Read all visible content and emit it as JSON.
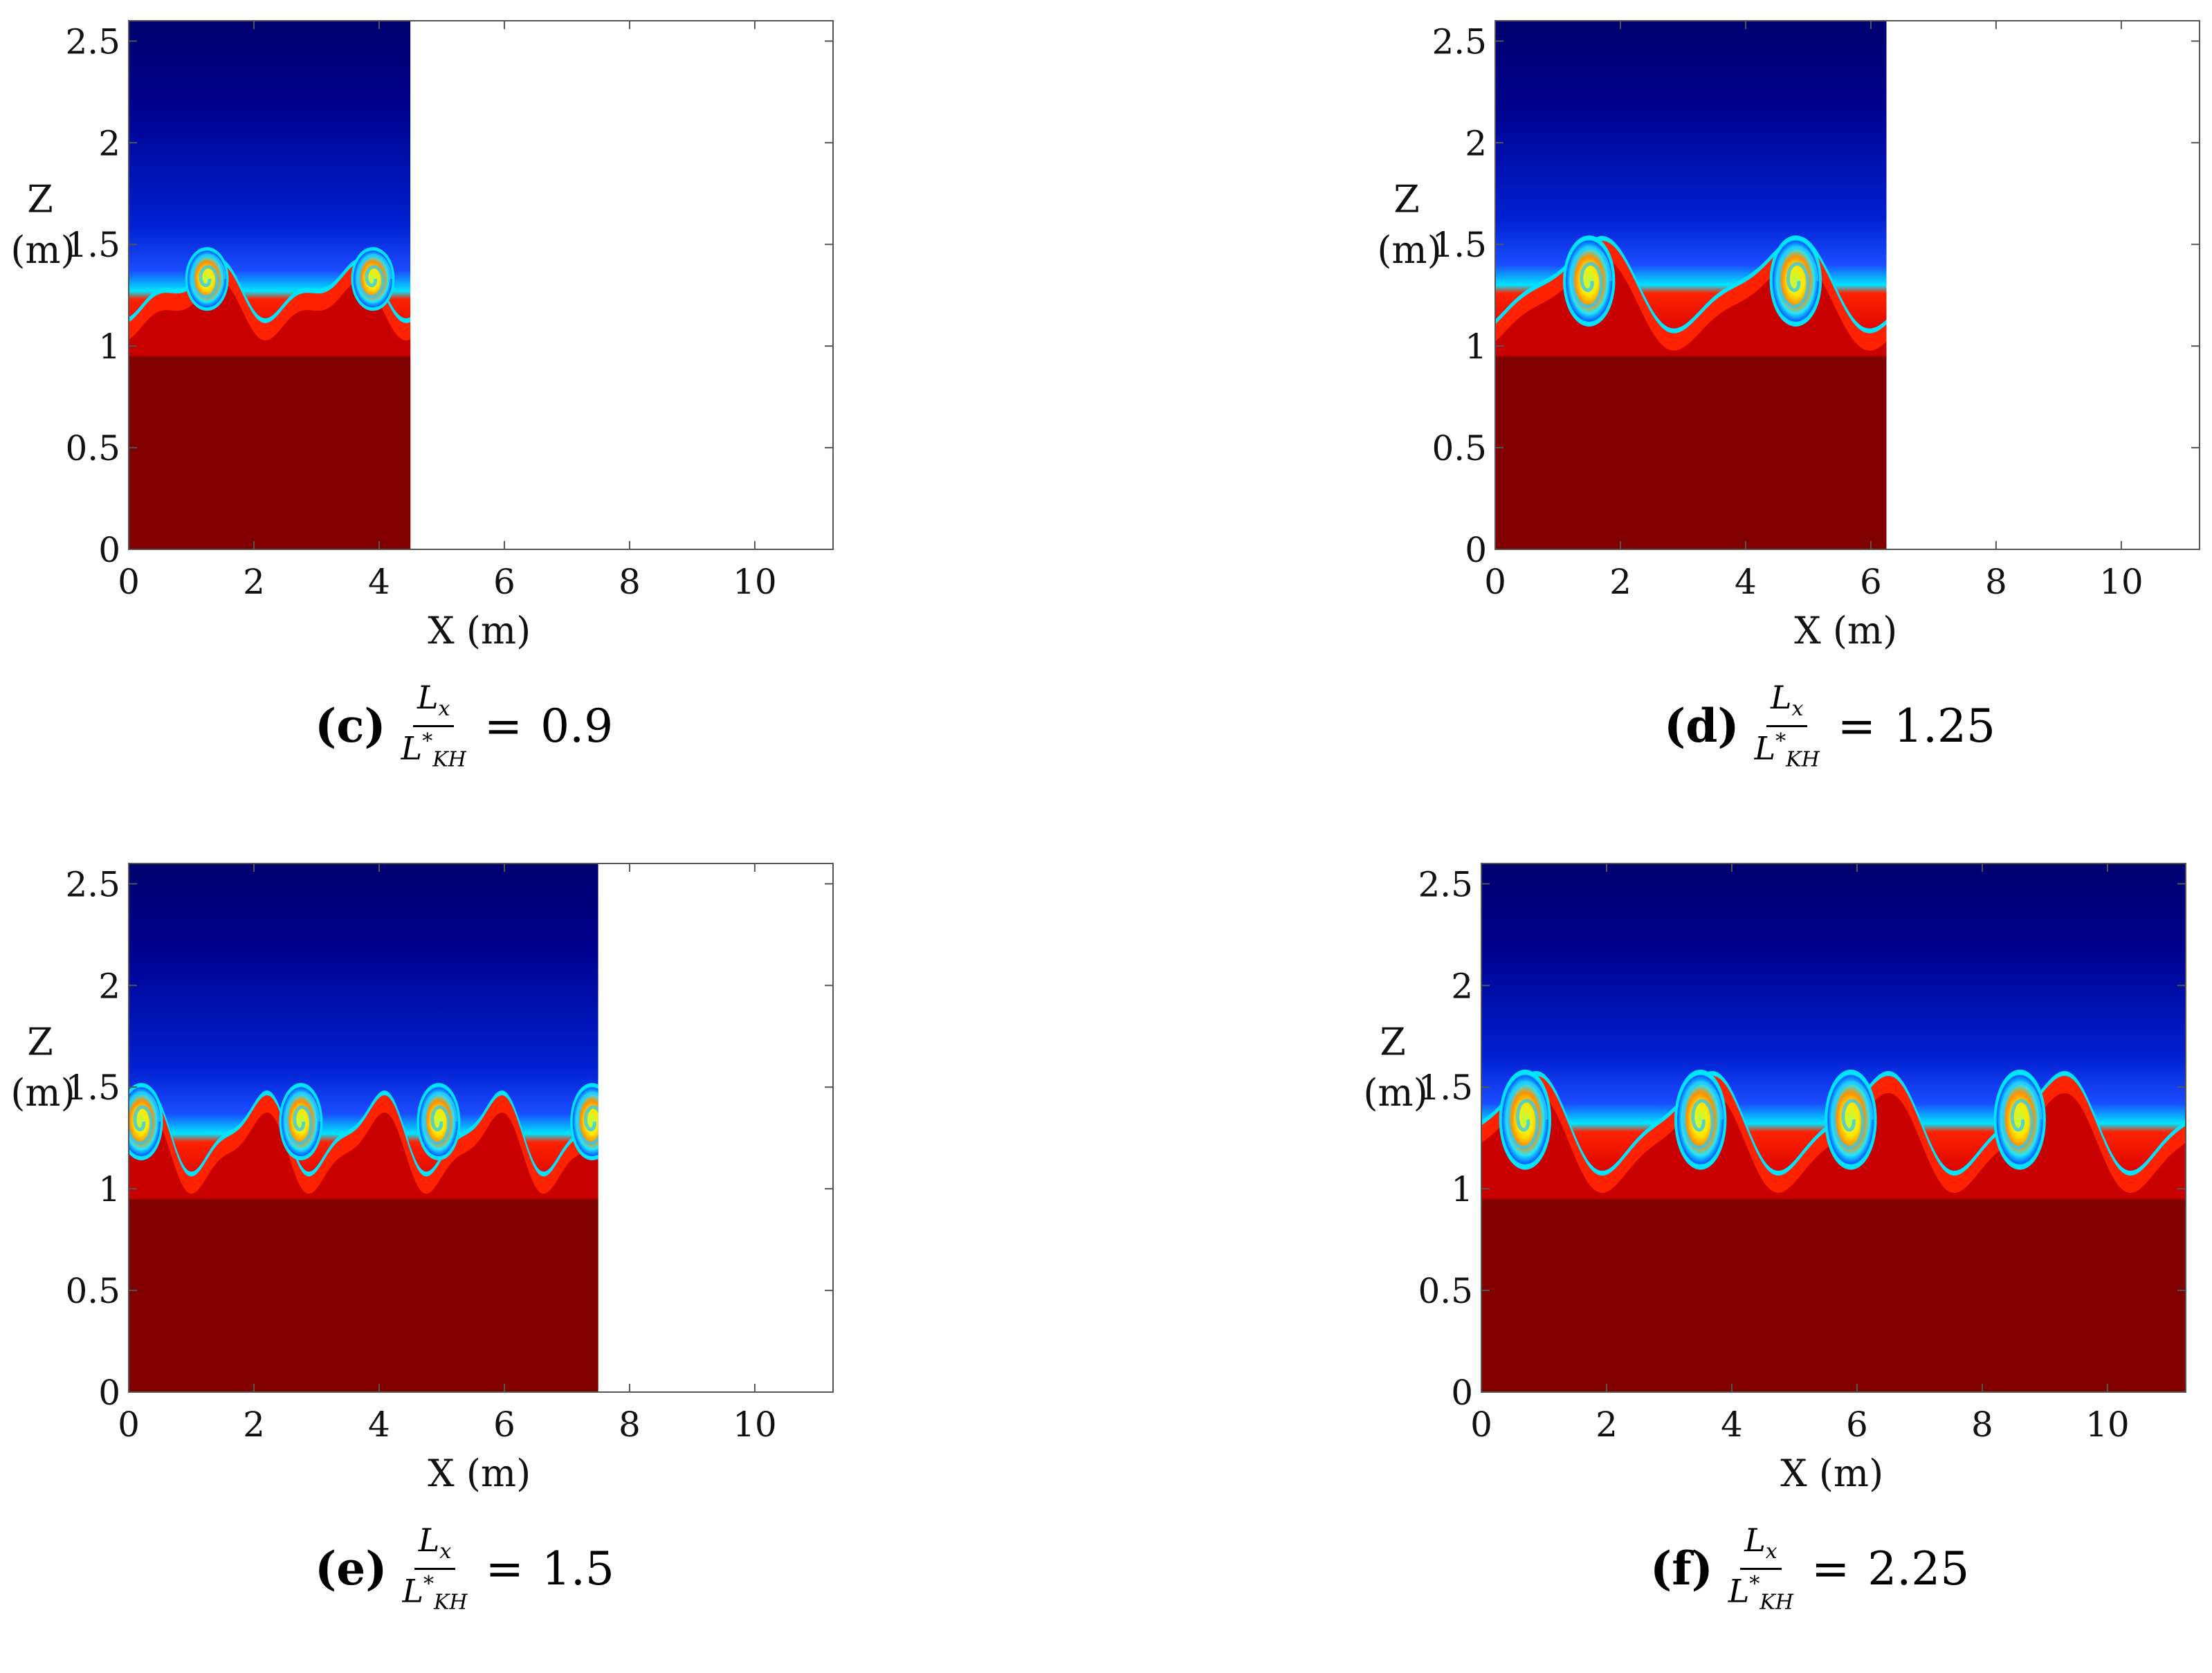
{
  "figure_panels": [
    {
      "id": "c",
      "label": "(c)",
      "caption_prefix": "L",
      "caption_sub_x": "x",
      "caption_den": "L",
      "caption_den_sup": "*",
      "caption_den_sub": "KH",
      "caption_eq": "=",
      "caption_value": "0.9"
    },
    {
      "id": "d",
      "label": "(d)",
      "caption_prefix": "L",
      "caption_sub_x": "x",
      "caption_den": "L",
      "caption_den_sup": "*",
      "caption_den_sub": "KH",
      "caption_eq": "=",
      "caption_value": "1.25"
    },
    {
      "id": "e",
      "label": "(e)",
      "caption_prefix": "L",
      "caption_sub_x": "x",
      "caption_den": "L",
      "caption_den_sup": "*",
      "caption_den_sub": "KH",
      "caption_eq": "=",
      "caption_value": "1.5"
    },
    {
      "id": "f",
      "label": "(f)",
      "caption_prefix": "L",
      "caption_sub_x": "x",
      "caption_den": "L",
      "caption_den_sup": "*",
      "caption_den_sub": "KH",
      "caption_eq": "=",
      "caption_value": "2.25"
    }
  ],
  "colors": {
    "upper_layer": "#00008b",
    "lower_layer": "#800000",
    "interface_warm": "#ff2200",
    "interface_mid": "#ffee00",
    "interface_cool": "#00e5ff",
    "interface_blue": "#1a4dff"
  },
  "chart_data": [
    {
      "panel": "c",
      "type": "heatmap",
      "description_of_field": "density contour of Kelvin-Helmholtz billows",
      "xlabel": "X (m)",
      "ylabel_line1": "Z",
      "ylabel_line2": "(m)",
      "xlim": [
        0,
        11.25
      ],
      "ylim": [
        0,
        2.6
      ],
      "xticks": [
        0,
        2,
        4,
        6,
        8,
        10
      ],
      "xtick_labels": [
        "0",
        "2",
        "4",
        "6",
        "8",
        "10"
      ],
      "yticks": [
        0,
        0.5,
        1,
        1.5,
        2,
        2.5
      ],
      "ytick_labels": [
        "0",
        "0.5",
        "1",
        "1.5",
        "2",
        "2.5"
      ],
      "domain_length_x": 4.5,
      "interface_mean_z": 1.25,
      "num_vortices": 2,
      "vortex_centers_x": [
        1.25,
        3.9
      ],
      "vortex_center_z": 1.33,
      "vortex_radius_x": 0.5,
      "vortex_radius_z": 0.14,
      "interface_amplitude": 0.11
    },
    {
      "panel": "d",
      "type": "heatmap",
      "description_of_field": "density contour of Kelvin-Helmholtz billows",
      "xlabel": "X (m)",
      "ylabel_line1": "Z",
      "ylabel_line2": "(m)",
      "xlim": [
        0,
        11.25
      ],
      "ylim": [
        0,
        2.6
      ],
      "xticks": [
        0,
        2,
        4,
        6,
        8,
        10
      ],
      "xtick_labels": [
        "0",
        "2",
        "4",
        "6",
        "8",
        "10"
      ],
      "yticks": [
        0,
        0.5,
        1,
        1.5,
        2,
        2.5
      ],
      "ytick_labels": [
        "0",
        "0.5",
        "1",
        "1.5",
        "2",
        "2.5"
      ],
      "domain_length_x": 6.25,
      "interface_mean_z": 1.28,
      "num_vortices": 2,
      "vortex_centers_x": [
        1.5,
        4.8
      ],
      "vortex_center_z": 1.32,
      "vortex_radius_x": 0.6,
      "vortex_radius_z": 0.2,
      "interface_amplitude": 0.2
    },
    {
      "panel": "e",
      "type": "heatmap",
      "description_of_field": "density contour of Kelvin-Helmholtz billows",
      "xlabel": "X (m)",
      "ylabel_line1": "Z",
      "ylabel_line2": "(m)",
      "xlim": [
        0,
        11.25
      ],
      "ylim": [
        0,
        2.6
      ],
      "xticks": [
        0,
        2,
        4,
        6,
        8,
        10
      ],
      "xtick_labels": [
        "0",
        "2",
        "4",
        "6",
        "8",
        "10"
      ],
      "yticks": [
        0,
        0.5,
        1,
        1.5,
        2,
        2.5
      ],
      "ytick_labels": [
        "0",
        "0.5",
        "1",
        "1.5",
        "2",
        "2.5"
      ],
      "domain_length_x": 7.5,
      "interface_mean_z": 1.25,
      "num_vortices": 4,
      "vortex_centers_x": [
        0.2,
        2.75,
        4.95,
        7.4
      ],
      "vortex_center_z": 1.33,
      "vortex_radius_x": 0.5,
      "vortex_radius_z": 0.17,
      "interface_amplitude": 0.17
    },
    {
      "panel": "f",
      "type": "heatmap",
      "description_of_field": "density contour of Kelvin-Helmholtz billows",
      "xlabel": "X (m)",
      "ylabel_line1": "Z",
      "ylabel_line2": "(m)",
      "xlim": [
        0,
        11.25
      ],
      "ylim": [
        0,
        2.6
      ],
      "xticks": [
        0,
        2,
        4,
        6,
        8,
        10
      ],
      "xtick_labels": [
        "0",
        "2",
        "4",
        "6",
        "8",
        "10"
      ],
      "yticks": [
        0,
        0.5,
        1,
        1.5,
        2,
        2.5
      ],
      "ytick_labels": [
        "0",
        "0.5",
        "1",
        "1.5",
        "2",
        "2.5"
      ],
      "domain_length_x": 11.25,
      "interface_mean_z": 1.3,
      "num_vortices": 4,
      "vortex_centers_x": [
        0.7,
        3.5,
        5.9,
        8.6
      ],
      "vortex_center_z": 1.34,
      "vortex_radius_x": 0.6,
      "vortex_radius_z": 0.22,
      "interface_amplitude": 0.22
    }
  ]
}
